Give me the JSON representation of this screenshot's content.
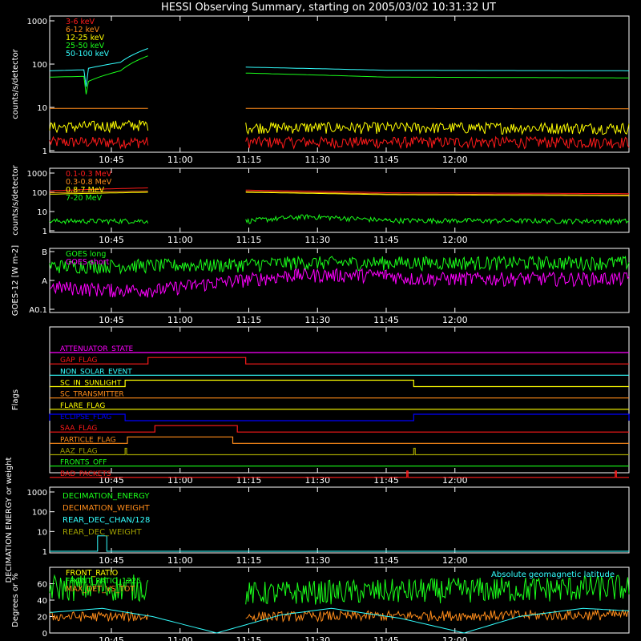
{
  "title": "HESSI Observing Summary, starting on 2005/03/02 10:31:32 UT",
  "colors": {
    "background": "#000000",
    "axis": "#ffffff",
    "red": "#ff1a1a",
    "orange": "#ff8c1a",
    "yellow": "#ffff00",
    "green": "#1aff1a",
    "cyan": "#33ffff",
    "magenta": "#ff00ff",
    "blue": "#0000ff",
    "olive": "#a0a000"
  },
  "x_ticks": [
    "10:45",
    "11:00",
    "11:15",
    "11:30",
    "11:45",
    "12:00"
  ],
  "x_range": [
    "10:31:32",
    "12:38:00"
  ],
  "chart_data": [
    {
      "type": "line",
      "ylabel": "counts/s/detector",
      "yscale": "log",
      "ylim": [
        1,
        1000
      ],
      "y_ticks": [
        "1000",
        "100",
        "10",
        "1"
      ],
      "legend_position": "top-left",
      "gaps": [
        [
          "10:53:00",
          "11:14:20"
        ]
      ],
      "series": [
        {
          "name": "3-6 keV",
          "color": "#ff1a1a",
          "segments": [
            [
              [
                "10:31:32",
                1.6
              ],
              [
                "10:53:00",
                1.6
              ]
            ],
            [
              [
                "11:14:20",
                1.6
              ],
              [
                "12:38:00",
                1.6
              ]
            ]
          ],
          "noise": true
        },
        {
          "name": "6-12 keV",
          "color": "#ff8c1a",
          "segments": [
            [
              [
                "10:31:32",
                9.5
              ],
              [
                "10:53:00",
                9.5
              ]
            ],
            [
              [
                "11:14:20",
                9.5
              ],
              [
                "12:38:00",
                9.3
              ]
            ]
          ]
        },
        {
          "name": "12-25 keV",
          "color": "#ffff00",
          "segments": [
            [
              [
                "10:31:32",
                3.5
              ],
              [
                "10:53:00",
                4.0
              ]
            ],
            [
              [
                "11:14:20",
                3.5
              ],
              [
                "12:38:00",
                3.4
              ]
            ]
          ],
          "noise": true
        },
        {
          "name": "25-50 keV",
          "color": "#1aff1a",
          "segments": [
            [
              [
                "10:31:32",
                50
              ],
              [
                "10:39:00",
                52
              ],
              [
                "10:39:30",
                20
              ],
              [
                "10:40:00",
                40
              ],
              [
                "10:47:00",
                70
              ],
              [
                "10:53:00",
                155
              ]
            ],
            [
              [
                "11:14:20",
                62
              ],
              [
                "11:45:00",
                50
              ],
              [
                "12:38:00",
                48
              ]
            ]
          ]
        },
        {
          "name": "50-100 keV",
          "color": "#33ffff",
          "segments": [
            [
              [
                "10:31:32",
                70
              ],
              [
                "10:39:00",
                74
              ],
              [
                "10:39:30",
                30
              ],
              [
                "10:40:00",
                80
              ],
              [
                "10:47:00",
                110
              ],
              [
                "10:53:00",
                230
              ]
            ],
            [
              [
                "11:14:20",
                85
              ],
              [
                "11:45:00",
                72
              ],
              [
                "12:38:00",
                70
              ]
            ]
          ]
        }
      ]
    },
    {
      "type": "line",
      "ylabel": "counts/s/detector",
      "yscale": "log",
      "ylim": [
        1,
        1000
      ],
      "y_ticks": [
        "1000",
        "100",
        "10",
        "1"
      ],
      "legend_position": "top-left",
      "gaps": [
        [
          "10:53:00",
          "11:14:20"
        ]
      ],
      "series": [
        {
          "name": "0.1-0.3 MeV",
          "color": "#ff1a1a",
          "segments": [
            [
              [
                "10:31:32",
                120
              ],
              [
                "10:53:00",
                170
              ]
            ],
            [
              [
                "11:14:20",
                130
              ],
              [
                "11:45:00",
                95
              ],
              [
                "12:38:00",
                85
              ]
            ]
          ]
        },
        {
          "name": "0.3-0.8 MeV",
          "color": "#ff8c1a",
          "segments": [
            [
              [
                "10:31:32",
                95
              ],
              [
                "10:53:00",
                115
              ]
            ],
            [
              [
                "11:14:20",
                110
              ],
              [
                "11:45:00",
                82
              ],
              [
                "12:38:00",
                72
              ]
            ]
          ]
        },
        {
          "name": "0.8-7 MeV",
          "color": "#ffff00",
          "segments": [
            [
              [
                "10:31:32",
                80
              ],
              [
                "10:53:00",
                100
              ]
            ],
            [
              [
                "11:14:20",
                100
              ],
              [
                "11:45:00",
                75
              ],
              [
                "12:38:00",
                66
              ]
            ]
          ]
        },
        {
          "name": "7-20 MeV",
          "color": "#1aff1a",
          "segments": [
            [
              [
                "10:31:32",
                3.2
              ],
              [
                "10:53:00",
                3.3
              ]
            ],
            [
              [
                "11:14:20",
                3.2
              ],
              [
                "11:28:00",
                5.5
              ],
              [
                "11:45:00",
                3.5
              ],
              [
                "12:38:00",
                3.2
              ]
            ]
          ],
          "noise": true
        }
      ]
    },
    {
      "type": "line",
      "ylabel": "GOES-12 [W m-2]",
      "yscale": "log",
      "y_ticks": [
        "B",
        "A",
        "A0.1"
      ],
      "series": [
        {
          "name": "GOES long",
          "color": "#1aff1a",
          "segments": [
            [
              [
                "10:31:32",
                0.62
              ],
              [
                "11:10:00",
                0.65
              ],
              [
                "11:25:00",
                0.72
              ],
              [
                "12:38:00",
                0.72
              ]
            ]
          ],
          "noise": true
        },
        {
          "name": "GOES short",
          "color": "#ff00ff",
          "segments": [
            [
              [
                "10:31:32",
                0.25
              ],
              [
                "10:45:00",
                0.22
              ],
              [
                "10:55:00",
                0.22
              ],
              [
                "11:08:00",
                0.3
              ],
              [
                "11:20:00",
                0.38
              ],
              [
                "11:25:00",
                0.42
              ],
              [
                "11:45:00",
                0.42
              ],
              [
                "11:50:00",
                0.36
              ],
              [
                "12:38:00",
                0.36
              ]
            ]
          ],
          "noise": true
        }
      ]
    },
    {
      "type": "line",
      "ylabel": "Flags",
      "flags": [
        {
          "name": "ATTENUATOR_STATE",
          "color": "#ff00ff",
          "highs": []
        },
        {
          "name": "GAP_FLAG",
          "color": "#ff1a1a",
          "highs": [
            [
              "10:53:00",
              "11:14:20"
            ]
          ]
        },
        {
          "name": "NON_SOLAR_EVENT",
          "color": "#33ffff",
          "highs": []
        },
        {
          "name": "SC_IN_SUNLIGHT",
          "color": "#ffff00",
          "highs": [
            [
              "10:48:00",
              "11:51:00"
            ]
          ]
        },
        {
          "name": "SC_TRANSMITTER",
          "color": "#ff8c1a",
          "highs": []
        },
        {
          "name": "FLARE_FLAG",
          "color": "#ffff00",
          "highs": []
        },
        {
          "name": "ECLIPSE_FLAG",
          "color": "#0000ff",
          "highs": [
            [
              "10:31:32",
              "10:48:00"
            ],
            [
              "11:51:00",
              "12:38:00"
            ]
          ]
        },
        {
          "name": "SAA_FLAG",
          "color": "#ff1a1a",
          "highs": [
            [
              "10:54:30",
              "11:12:30"
            ]
          ]
        },
        {
          "name": "PARTICLE_FLAG",
          "color": "#ff8c1a",
          "highs": [
            [
              "10:48:30",
              "11:11:30"
            ]
          ]
        },
        {
          "name": "AAZ_FLAG",
          "color": "#a0a000",
          "highs": [
            [
              "10:48:00",
              "10:48:20"
            ],
            [
              "11:51:00",
              "11:51:20"
            ]
          ]
        },
        {
          "name": "FRONTS_OFF",
          "color": "#1aff1a",
          "highs": []
        },
        {
          "name": "BAD_PACKETS",
          "color": "#ff1a1a",
          "highs": [
            [
              "11:49:30",
              "11:49:45"
            ],
            [
              "12:35:00",
              "12:35:15"
            ]
          ]
        }
      ]
    },
    {
      "type": "line",
      "ylabel": "DECIMATION ENERGY or weight",
      "yscale": "log",
      "ylim": [
        1,
        1000
      ],
      "y_ticks": [
        "1000",
        "100",
        "10",
        "1"
      ],
      "legend_position": "top-left",
      "series": [
        {
          "name": "DECIMATION_ENERGY",
          "color": "#1aff1a",
          "segments": []
        },
        {
          "name": "DECIMATION_WEIGHT",
          "color": "#ff8c1a",
          "segments": []
        },
        {
          "name": "REAR_DEC_CHAN/128",
          "color": "#33ffff",
          "segments": [
            [
              [
                "10:31:32",
                1
              ],
              [
                "10:42:00",
                1
              ],
              [
                "10:42:00",
                6
              ],
              [
                "10:44:00",
                6
              ],
              [
                "10:44:00",
                1
              ],
              [
                "12:38:00",
                1
              ]
            ]
          ]
        },
        {
          "name": "REAR_DEC_WEIGHT",
          "color": "#a0a000",
          "segments": []
        }
      ]
    },
    {
      "type": "line",
      "ylabel": "Degrees or %",
      "ylim": [
        0,
        80
      ],
      "y_ticks": [
        "60",
        "40",
        "20",
        "0"
      ],
      "legend_position": "top-left",
      "annotation": "Absolute geomagnetic latitude",
      "series": [
        {
          "name": "FRONT_RATIO",
          "color": "#ffff00",
          "segments": []
        },
        {
          "name": "FRONT_RATIO_1225",
          "color": "#1aff1a",
          "segments": [
            [
              [
                "10:31:32",
                55
              ],
              [
                "10:53:00",
                55
              ]
            ],
            [
              [
                "11:14:20",
                48
              ],
              [
                "12:38:00",
                55
              ]
            ]
          ],
          "noise": true
        },
        {
          "name": "MAX_DET_VS_TOT",
          "color": "#ff8c1a",
          "segments": [
            [
              [
                "10:31:32",
                20
              ],
              [
                "10:53:00",
                20
              ]
            ],
            [
              [
                "11:14:20",
                20
              ],
              [
                "12:38:00",
                22
              ]
            ]
          ],
          "noise": true
        },
        {
          "name": "Absolute geomagnetic latitude",
          "color": "#33ffff",
          "segments": [
            [
              [
                "10:31:32",
                25
              ],
              [
                "10:43:00",
                30
              ],
              [
                "10:54:00",
                20
              ],
              [
                "11:08:00",
                0
              ],
              [
                "11:22:00",
                22
              ],
              [
                "11:33:00",
                30
              ],
              [
                "11:48:00",
                18
              ],
              [
                "12:02:00",
                0
              ],
              [
                "12:14:00",
                20
              ],
              [
                "12:28:00",
                30
              ],
              [
                "12:38:00",
                27
              ]
            ]
          ]
        }
      ]
    }
  ]
}
